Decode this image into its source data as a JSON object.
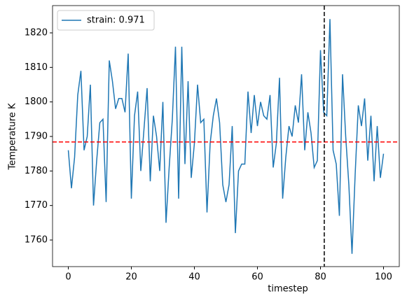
{
  "chart_data": {
    "type": "line",
    "xlabel": "timestep",
    "ylabel": "Temperature K",
    "x": [
      0,
      1,
      2,
      3,
      4,
      5,
      6,
      7,
      8,
      9,
      10,
      11,
      12,
      13,
      14,
      15,
      16,
      17,
      18,
      19,
      20,
      21,
      22,
      23,
      24,
      25,
      26,
      27,
      28,
      29,
      30,
      31,
      32,
      33,
      34,
      35,
      36,
      37,
      38,
      39,
      40,
      41,
      42,
      43,
      44,
      45,
      46,
      47,
      48,
      49,
      50,
      51,
      52,
      53,
      54,
      55,
      56,
      57,
      58,
      59,
      60,
      61,
      62,
      63,
      64,
      65,
      66,
      67,
      68,
      69,
      70,
      71,
      72,
      73,
      74,
      75,
      76,
      77,
      78,
      79,
      80,
      81,
      82,
      83,
      84,
      85,
      86,
      87,
      88,
      89,
      90,
      91,
      92,
      93,
      94,
      95,
      96,
      97,
      98,
      99,
      100
    ],
    "series": [
      {
        "name": "strain: 0.971",
        "color": "#1f77b4",
        "values": [
          1786,
          1775,
          1784,
          1802,
          1809,
          1786,
          1790,
          1805,
          1770,
          1783,
          1794,
          1795,
          1771,
          1812,
          1806,
          1798,
          1801,
          1801,
          1797,
          1814,
          1772,
          1796,
          1803,
          1780,
          1792,
          1804,
          1777,
          1796,
          1790,
          1780,
          1800,
          1765,
          1781,
          1795,
          1816,
          1772,
          1816,
          1782,
          1806,
          1778,
          1788,
          1805,
          1794,
          1795,
          1768,
          1788,
          1796,
          1801,
          1794,
          1776,
          1771,
          1776,
          1793,
          1762,
          1780,
          1782,
          1782,
          1803,
          1791,
          1802,
          1793,
          1800,
          1796,
          1795,
          1802,
          1781,
          1788,
          1807,
          1772,
          1784,
          1793,
          1790,
          1799,
          1794,
          1808,
          1786,
          1797,
          1791,
          1781,
          1783,
          1815,
          1797,
          1796,
          1824,
          1786,
          1782,
          1767,
          1808,
          1790,
          1776,
          1756,
          1779,
          1799,
          1793,
          1801,
          1783,
          1796,
          1777,
          1793,
          1778,
          1785
        ]
      }
    ],
    "hline": {
      "value": 1788.4,
      "color": "#ff0000"
    },
    "vline": {
      "value": 81.2,
      "color": "#000000"
    },
    "xlim": [
      -5,
      105
    ],
    "ylim": [
      1752.3,
      1827.9
    ],
    "xticks": [
      0,
      20,
      40,
      60,
      80,
      100
    ],
    "yticks": [
      1760,
      1770,
      1780,
      1790,
      1800,
      1810,
      1820
    ],
    "legend": "upper left"
  }
}
